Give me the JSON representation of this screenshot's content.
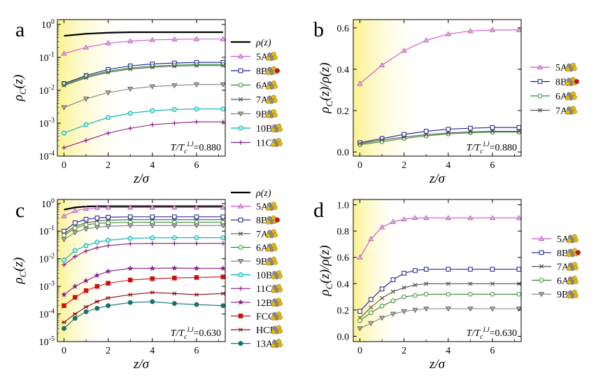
{
  "colors": {
    "gradStart": "#fbf28f",
    "gradEnd": "#ffffff",
    "rho": "#000000",
    "5A": "#cc55cc",
    "8B": "#1a1a99",
    "6A": "#2e8b2e",
    "7A": "#555555",
    "9B": "#808080",
    "10B": "#00b0b0",
    "11C": "#8a1a8a",
    "12B": "#8a1a8a",
    "FCC": "#cc1010",
    "HCP": "#8b1010",
    "13A": "#1a7070"
  },
  "chart_data": [
    {
      "id": "a",
      "type": "line",
      "panel_letter": "a",
      "xlabel": "z/σ",
      "ylabel": "ρC(z)",
      "ylabel_main": "ρ",
      "ylabel_sub": "C",
      "ylabel_rest": "(z)",
      "yscale": "log",
      "xlim": [
        -0.3,
        7.3
      ],
      "ylim": [
        0.0001,
        1.4
      ],
      "xticks": [
        "0",
        "2",
        "4",
        "6"
      ],
      "yticks": [
        {
          "base": "10",
          "exp": "-4",
          "v": 0.0001
        },
        {
          "base": "10",
          "exp": "-3",
          "v": 0.001
        },
        {
          "base": "10",
          "exp": "-2",
          "v": 0.01
        },
        {
          "base": "10",
          "exp": "-1",
          "v": 0.1
        },
        {
          "base": "10",
          "exp": "0",
          "v": 1
        }
      ],
      "shade_to": 3,
      "temperature": {
        "pre": "T/T",
        "sub": "c",
        "sup": "LJ",
        "post": "=0.880"
      },
      "legend_entries": [
        "ρ(z)",
        "5A",
        "8B",
        "6A",
        "7A",
        "9B",
        "10B",
        "11C"
      ],
      "series": [
        {
          "name": "ρ(z)",
          "key": "rho",
          "style": "thick",
          "x": [
            0,
            1,
            2,
            3,
            4,
            5,
            6,
            7.2
          ],
          "y": [
            0.45,
            0.52,
            0.56,
            0.58,
            0.58,
            0.58,
            0.58,
            0.58
          ]
        },
        {
          "name": "5A",
          "key": "5A",
          "marker": "tri",
          "x": [
            0,
            1,
            2,
            3,
            4,
            5,
            6,
            7.2
          ],
          "y": [
            0.13,
            0.2,
            0.27,
            0.31,
            0.34,
            0.35,
            0.36,
            0.36
          ]
        },
        {
          "name": "8B",
          "key": "8B",
          "marker": "sq",
          "x": [
            0,
            1,
            2,
            3,
            4,
            5,
            6,
            7.2
          ],
          "y": [
            0.016,
            0.028,
            0.043,
            0.055,
            0.063,
            0.067,
            0.07,
            0.07
          ]
        },
        {
          "name": "6A",
          "key": "6A",
          "marker": "circ",
          "x": [
            0,
            1,
            2,
            3,
            4,
            5,
            6,
            7.2
          ],
          "y": [
            0.015,
            0.026,
            0.038,
            0.048,
            0.054,
            0.058,
            0.06,
            0.06
          ]
        },
        {
          "name": "7A",
          "key": "7A",
          "marker": "x",
          "x": [
            0,
            1,
            2,
            3,
            4,
            5,
            6,
            7.2
          ],
          "y": [
            0.014,
            0.024,
            0.035,
            0.044,
            0.05,
            0.054,
            0.056,
            0.056
          ]
        },
        {
          "name": "9B",
          "key": "9B",
          "marker": "tridown",
          "x": [
            0,
            1,
            2,
            3,
            4,
            5,
            6,
            7.2
          ],
          "y": [
            0.003,
            0.0055,
            0.0085,
            0.011,
            0.013,
            0.014,
            0.015,
            0.015
          ]
        },
        {
          "name": "10B",
          "key": "10B",
          "marker": "pent",
          "x": [
            0,
            1,
            2,
            3,
            4,
            5,
            6,
            7.2
          ],
          "y": [
            0.0005,
            0.0009,
            0.0015,
            0.002,
            0.0024,
            0.0026,
            0.0027,
            0.0027
          ]
        },
        {
          "name": "11C",
          "key": "11C",
          "marker": "plus",
          "x": [
            0,
            1,
            2,
            3,
            4,
            5,
            6,
            7.2
          ],
          "y": [
            0.00018,
            0.0003,
            0.0005,
            0.0007,
            0.0009,
            0.001,
            0.0011,
            0.0011
          ]
        }
      ]
    },
    {
      "id": "b",
      "type": "line",
      "panel_letter": "b",
      "xlabel": "z/σ",
      "ylabel": "ρC(z)/ρ(z)",
      "ylabel_main": "ρ",
      "ylabel_sub": "C",
      "ylabel_rest": "(z)/ρ(z)",
      "yscale": "linear",
      "xlim": [
        -0.3,
        7.3
      ],
      "ylim": [
        -0.02,
        0.64
      ],
      "xticks": [
        "0",
        "2",
        "4",
        "6"
      ],
      "yticks": [
        {
          "label": "0.0",
          "v": 0
        },
        {
          "label": "0.2",
          "v": 0.2
        },
        {
          "label": "0.4",
          "v": 0.4
        },
        {
          "label": "0.6",
          "v": 0.6
        }
      ],
      "shade_to": 3,
      "temperature": {
        "pre": "T/T",
        "sub": "c",
        "sup": "LJ",
        "post": "=0.880"
      },
      "legend_entries": [
        "5A",
        "8B",
        "6A",
        "7A"
      ],
      "series": [
        {
          "name": "5A",
          "key": "5A",
          "marker": "tri",
          "x": [
            0,
            1,
            2,
            3,
            4,
            5,
            6,
            7.2
          ],
          "y": [
            0.33,
            0.42,
            0.49,
            0.54,
            0.57,
            0.585,
            0.59,
            0.59
          ]
        },
        {
          "name": "8B",
          "key": "8B",
          "marker": "sq",
          "x": [
            0,
            1,
            2,
            3,
            4,
            5,
            6,
            7.2
          ],
          "y": [
            0.045,
            0.065,
            0.085,
            0.1,
            0.11,
            0.115,
            0.118,
            0.118
          ]
        },
        {
          "name": "6A",
          "key": "6A",
          "marker": "circ",
          "x": [
            0,
            1,
            2,
            3,
            4,
            5,
            6,
            7.2
          ],
          "y": [
            0.035,
            0.05,
            0.065,
            0.078,
            0.087,
            0.093,
            0.096,
            0.096
          ]
        },
        {
          "name": "7A",
          "key": "7A",
          "marker": "x",
          "x": [
            0,
            1,
            2,
            3,
            4,
            5,
            6,
            7.2
          ],
          "y": [
            0.04,
            0.058,
            0.072,
            0.084,
            0.092,
            0.097,
            0.1,
            0.1
          ]
        }
      ]
    },
    {
      "id": "c",
      "type": "line",
      "panel_letter": "c",
      "xlabel": "z/σ",
      "ylabel": "ρC(z)",
      "ylabel_main": "ρ",
      "ylabel_sub": "C",
      "ylabel_rest": "(z)",
      "yscale": "log",
      "xlim": [
        -0.3,
        7.3
      ],
      "ylim": [
        1e-05,
        1.4
      ],
      "xticks": [
        "0",
        "2",
        "4",
        "6"
      ],
      "yticks": [
        {
          "base": "10",
          "exp": "-5",
          "v": 1e-05
        },
        {
          "base": "10",
          "exp": "-4",
          "v": 0.0001
        },
        {
          "base": "10",
          "exp": "-3",
          "v": 0.001
        },
        {
          "base": "10",
          "exp": "-2",
          "v": 0.01
        },
        {
          "base": "10",
          "exp": "-1",
          "v": 0.1
        },
        {
          "base": "10",
          "exp": "0",
          "v": 1
        }
      ],
      "shade_to": 2,
      "temperature": {
        "pre": "T/T",
        "sub": "c",
        "sup": "LJ",
        "post": "=0.630"
      },
      "legend_entries": [
        "ρ(z)",
        "5A",
        "8B",
        "7A",
        "6A",
        "9B",
        "10B",
        "11C",
        "12B",
        "FCC",
        "HCP",
        "13A"
      ],
      "series": [
        {
          "name": "ρ(z)",
          "key": "rho",
          "style": "thick",
          "x": [
            0,
            0.5,
            1,
            1.5,
            2,
            3,
            4,
            5,
            6,
            7.2
          ],
          "y": [
            0.6,
            0.72,
            0.78,
            0.8,
            0.8,
            0.8,
            0.8,
            0.8,
            0.8,
            0.8
          ]
        },
        {
          "name": "5A",
          "key": "5A",
          "marker": "tri",
          "x": [
            0,
            0.5,
            1,
            1.5,
            2,
            3,
            4,
            5,
            6,
            7.2
          ],
          "y": [
            0.35,
            0.55,
            0.65,
            0.7,
            0.72,
            0.72,
            0.72,
            0.72,
            0.72,
            0.72
          ]
        },
        {
          "name": "8B",
          "key": "8B",
          "marker": "sq",
          "x": [
            0,
            0.5,
            1,
            1.5,
            2,
            3,
            4,
            5,
            6,
            7.2
          ],
          "y": [
            0.1,
            0.2,
            0.27,
            0.3,
            0.32,
            0.33,
            0.33,
            0.33,
            0.33,
            0.33
          ]
        },
        {
          "name": "7A",
          "key": "7A",
          "marker": "x",
          "x": [
            0,
            0.5,
            1,
            1.5,
            2,
            3,
            4,
            5,
            6,
            7.2
          ],
          "y": [
            0.08,
            0.15,
            0.2,
            0.23,
            0.25,
            0.26,
            0.26,
            0.26,
            0.26,
            0.26
          ]
        },
        {
          "name": "6A",
          "key": "6A",
          "marker": "circ",
          "x": [
            0,
            0.5,
            1,
            1.5,
            2,
            3,
            4,
            5,
            6,
            7.2
          ],
          "y": [
            0.07,
            0.13,
            0.17,
            0.19,
            0.2,
            0.21,
            0.21,
            0.21,
            0.21,
            0.21
          ]
        },
        {
          "name": "9B",
          "key": "9B",
          "marker": "tridown",
          "x": [
            0,
            0.5,
            1,
            1.5,
            2,
            3,
            4,
            5,
            6,
            7.2
          ],
          "y": [
            0.05,
            0.09,
            0.12,
            0.14,
            0.15,
            0.16,
            0.16,
            0.16,
            0.16,
            0.16
          ]
        },
        {
          "name": "10B",
          "key": "10B",
          "marker": "pent",
          "x": [
            0,
            0.5,
            1,
            1.5,
            2,
            3,
            4,
            5,
            6,
            7.2
          ],
          "y": [
            0.009,
            0.02,
            0.03,
            0.04,
            0.047,
            0.055,
            0.057,
            0.058,
            0.058,
            0.058
          ]
        },
        {
          "name": "11C",
          "key": "11C",
          "marker": "plus",
          "x": [
            0,
            0.5,
            1,
            1.5,
            2,
            3,
            4,
            5,
            6,
            7.2
          ],
          "y": [
            0.006,
            0.012,
            0.019,
            0.025,
            0.03,
            0.035,
            0.036,
            0.036,
            0.036,
            0.036
          ]
        },
        {
          "name": "12B",
          "key": "12B",
          "marker": "star",
          "x": [
            0,
            0.5,
            1,
            1.5,
            2,
            3,
            4,
            5,
            6,
            7.2
          ],
          "y": [
            0.0005,
            0.001,
            0.0016,
            0.0025,
            0.0035,
            0.0045,
            0.0045,
            0.0046,
            0.0045,
            0.0045
          ]
        },
        {
          "name": "FCC",
          "key": "FCC",
          "marker": "sqfill",
          "x": [
            0,
            0.5,
            1,
            1.5,
            2,
            3,
            4,
            5,
            6,
            7.2
          ],
          "y": [
            0.0002,
            0.0004,
            0.0007,
            0.001,
            0.0013,
            0.0017,
            0.0019,
            0.002,
            0.0021,
            0.0022
          ]
        },
        {
          "name": "HCP",
          "key": "HCP",
          "marker": "asterisk",
          "x": [
            0,
            0.5,
            1,
            1.5,
            2,
            3,
            4,
            5,
            6,
            7.2
          ],
          "y": [
            5e-05,
            0.0001,
            0.00018,
            0.00028,
            0.00038,
            0.0005,
            0.0006,
            0.00055,
            0.0005,
            0.00055
          ]
        },
        {
          "name": "13A",
          "key": "13A",
          "marker": "circfill",
          "x": [
            0,
            0.5,
            1,
            1.5,
            2,
            3,
            4,
            5,
            6,
            7.2
          ],
          "y": [
            3e-05,
            7e-05,
            0.00012,
            0.00016,
            0.0002,
            0.00026,
            0.00028,
            0.00024,
            0.00022,
            0.0002
          ]
        }
      ]
    },
    {
      "id": "d",
      "type": "line",
      "panel_letter": "d",
      "xlabel": "z/σ",
      "ylabel": "ρC(z)/ρ(z)",
      "ylabel_main": "ρ",
      "ylabel_sub": "C",
      "ylabel_rest": "(z)/ρ(z)",
      "yscale": "linear",
      "xlim": [
        -0.3,
        7.3
      ],
      "ylim": [
        -0.04,
        1.04
      ],
      "xticks": [
        "0",
        "2",
        "4",
        "6"
      ],
      "yticks": [
        {
          "label": "0.0",
          "v": 0
        },
        {
          "label": "0.2",
          "v": 0.2
        },
        {
          "label": "0.4",
          "v": 0.4
        },
        {
          "label": "0.6",
          "v": 0.6
        },
        {
          "label": "0.8",
          "v": 0.8
        },
        {
          "label": "1.0",
          "v": 1.0
        }
      ],
      "shade_to": 2,
      "temperature": {
        "pre": "T/T",
        "sub": "c",
        "sup": "LJ",
        "post": "=0.630"
      },
      "legend_entries": [
        "5A",
        "8B",
        "7A",
        "6A",
        "9B"
      ],
      "series": [
        {
          "name": "5A",
          "key": "5A",
          "marker": "tri",
          "x": [
            0,
            0.5,
            1,
            1.5,
            2,
            2.5,
            3,
            4,
            5,
            6,
            7.2
          ],
          "y": [
            0.6,
            0.74,
            0.83,
            0.87,
            0.89,
            0.9,
            0.9,
            0.9,
            0.9,
            0.9,
            0.9
          ]
        },
        {
          "name": "8B",
          "key": "8B",
          "marker": "sq",
          "x": [
            0,
            0.5,
            1,
            1.5,
            2,
            2.5,
            3,
            4,
            5,
            6,
            7.2
          ],
          "y": [
            0.19,
            0.28,
            0.36,
            0.43,
            0.48,
            0.5,
            0.51,
            0.51,
            0.51,
            0.51,
            0.51
          ]
        },
        {
          "name": "7A",
          "key": "7A",
          "marker": "x",
          "x": [
            0,
            0.5,
            1,
            1.5,
            2,
            2.5,
            3,
            4,
            5,
            6,
            7.2
          ],
          "y": [
            0.14,
            0.22,
            0.29,
            0.34,
            0.37,
            0.39,
            0.4,
            0.4,
            0.4,
            0.4,
            0.4
          ]
        },
        {
          "name": "6A",
          "key": "6A",
          "marker": "circ",
          "x": [
            0,
            0.5,
            1,
            1.5,
            2,
            2.5,
            3,
            4,
            5,
            6,
            7.2
          ],
          "y": [
            0.12,
            0.18,
            0.23,
            0.27,
            0.3,
            0.31,
            0.32,
            0.32,
            0.32,
            0.32,
            0.32
          ]
        },
        {
          "name": "9B",
          "key": "9B",
          "marker": "tridown",
          "x": [
            0,
            0.5,
            1,
            1.5,
            2,
            2.5,
            3,
            4,
            5,
            6,
            7.2
          ],
          "y": [
            0.06,
            0.1,
            0.14,
            0.17,
            0.19,
            0.2,
            0.21,
            0.21,
            0.21,
            0.21,
            0.21
          ]
        }
      ]
    }
  ]
}
